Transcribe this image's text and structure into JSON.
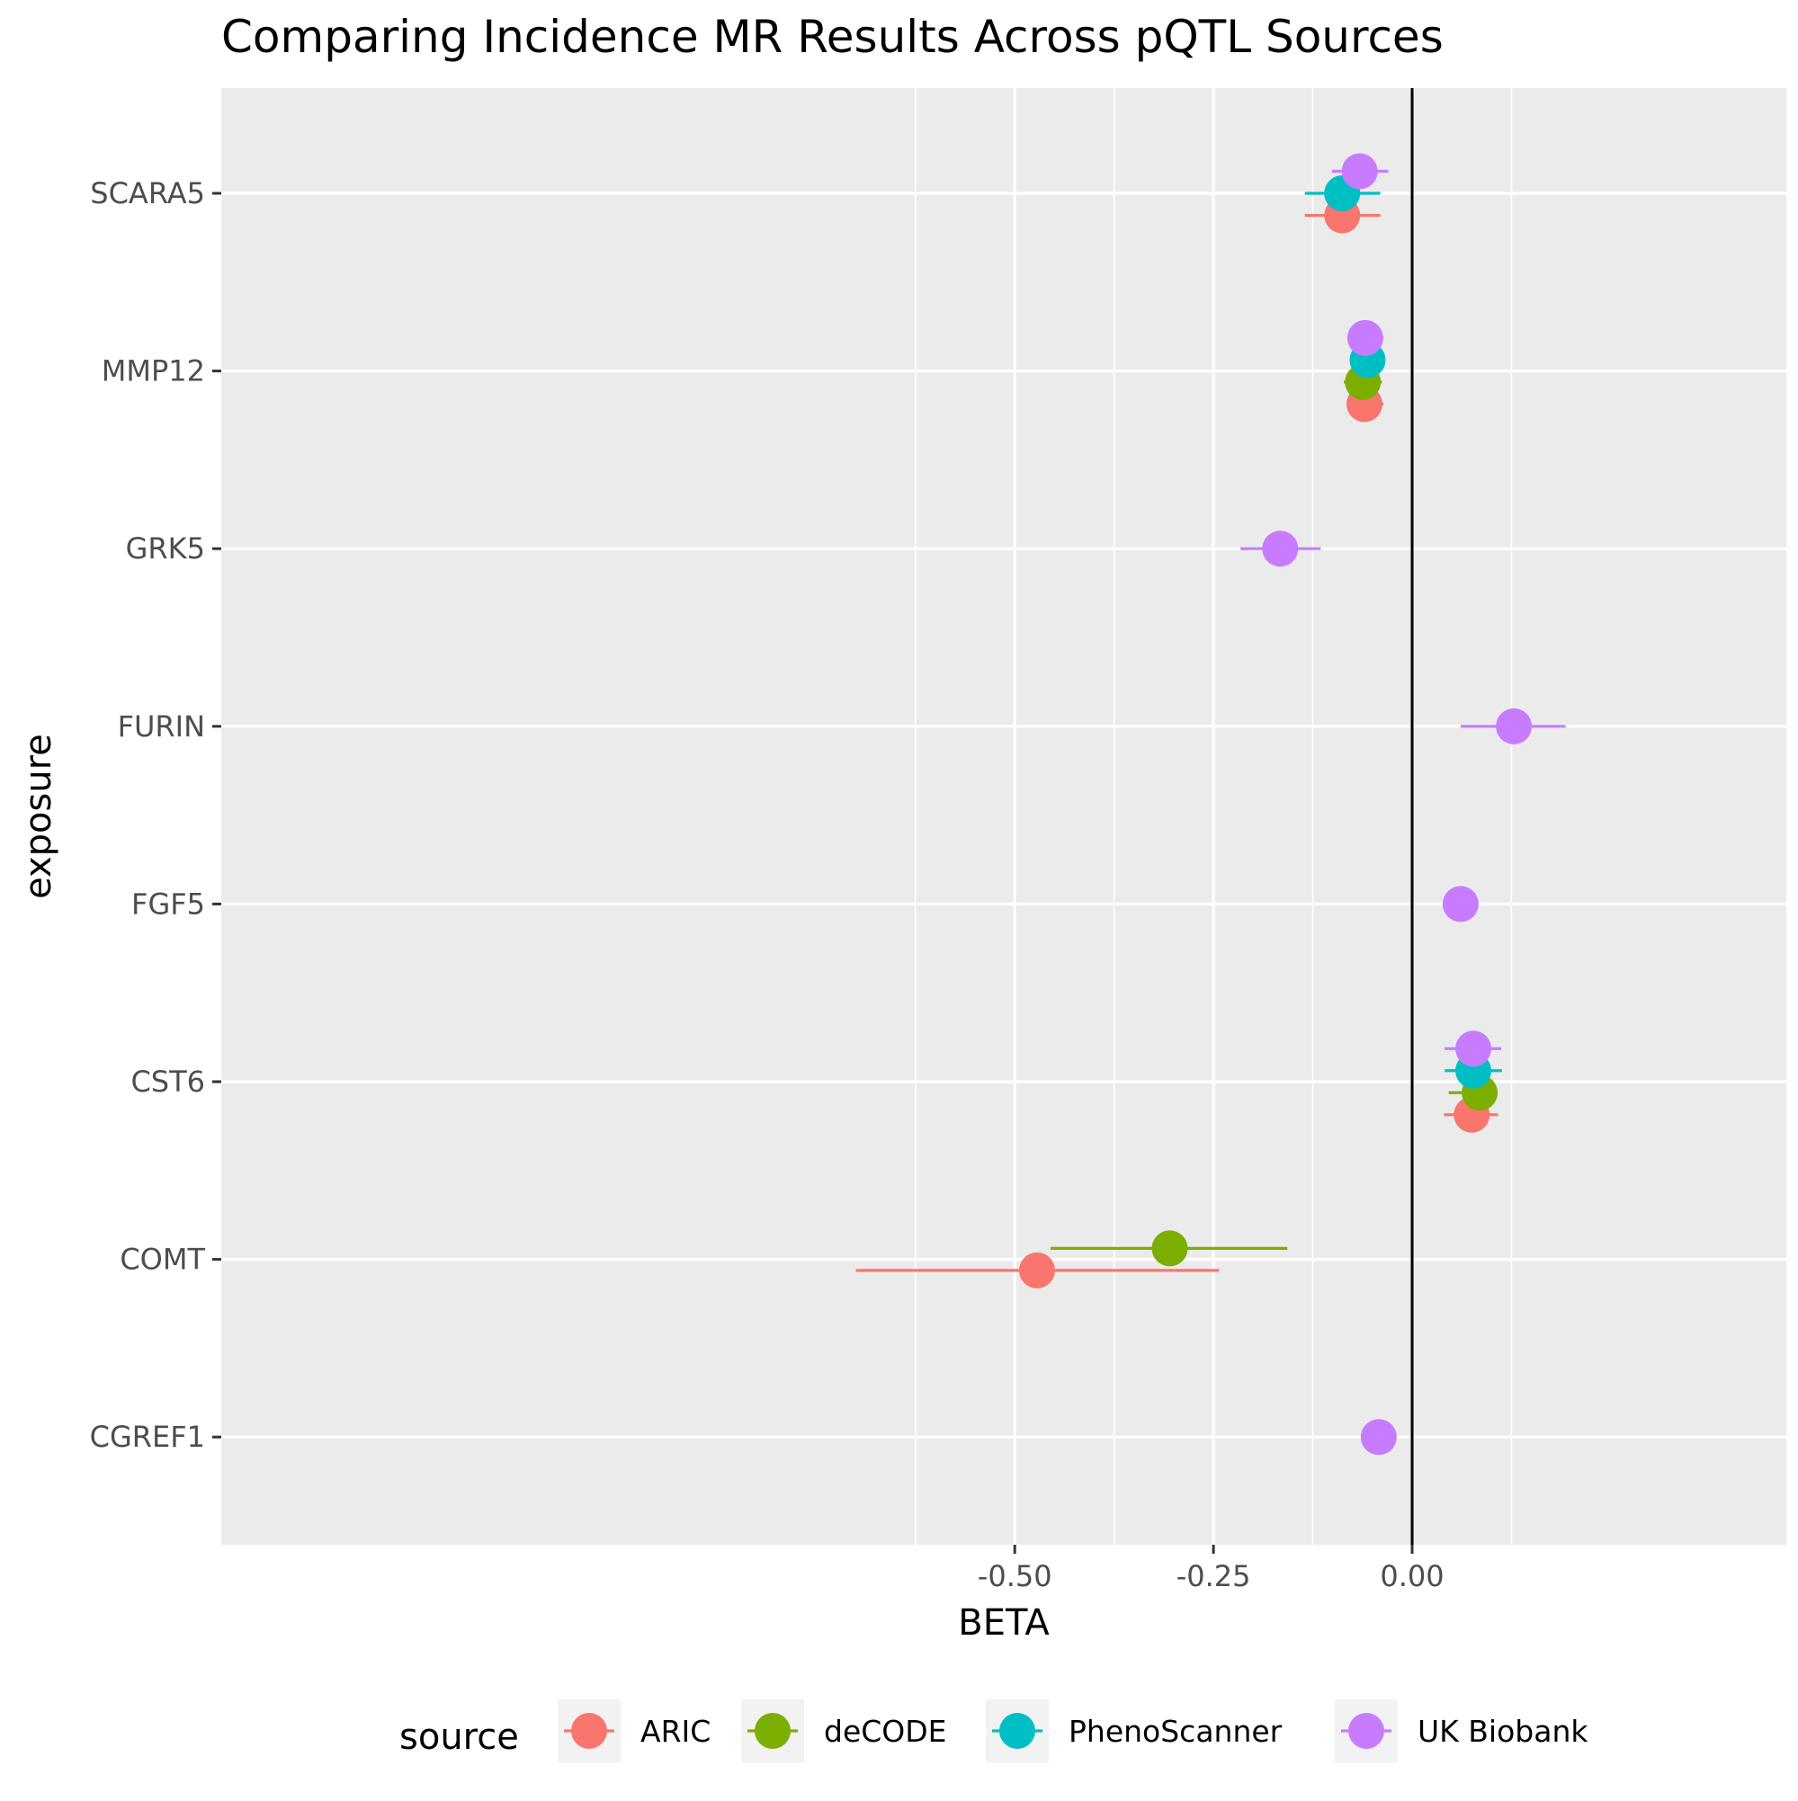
{
  "chart_data": {
    "type": "scatter",
    "title": "Comparing Incidence MR Results Across pQTL Sources",
    "xlabel": "BETA",
    "ylabel": "exposure",
    "xlim": [
      -0.75,
      0.24
    ],
    "xticks": [
      -0.5,
      -0.25,
      0.0
    ],
    "xtick_labels": [
      "-0.50",
      "-0.25",
      "0.00"
    ],
    "categories": [
      "SCARA5",
      "MMP12",
      "GRK5",
      "FURIN",
      "FGF5",
      "CST6",
      "COMT",
      "CGREF1"
    ],
    "reference_line_x": 0,
    "legend": {
      "title": "source",
      "position": "bottom"
    },
    "grid": true,
    "series": [
      {
        "name": "ARIC",
        "color": "#F8766D",
        "points": [
          {
            "exposure": "SCARA5",
            "beta": -0.088,
            "lo": -0.135,
            "hi": -0.04
          },
          {
            "exposure": "MMP12",
            "beta": -0.06,
            "lo": -0.08,
            "hi": -0.036
          },
          {
            "exposure": "CST6",
            "beta": 0.075,
            "lo": 0.04,
            "hi": 0.108
          },
          {
            "exposure": "COMT",
            "beta": -0.472,
            "lo": -0.7,
            "hi": -0.243
          }
        ]
      },
      {
        "name": "deCODE",
        "color": "#7CAE00",
        "points": [
          {
            "exposure": "MMP12",
            "beta": -0.062,
            "lo": -0.086,
            "hi": -0.038
          },
          {
            "exposure": "CST6",
            "beta": 0.085,
            "lo": 0.046,
            "hi": 0.104
          },
          {
            "exposure": "COMT",
            "beta": -0.305,
            "lo": -0.455,
            "hi": -0.157
          }
        ]
      },
      {
        "name": "PhenoScanner",
        "color": "#00BFC4",
        "points": [
          {
            "exposure": "SCARA5",
            "beta": -0.088,
            "lo": -0.135,
            "hi": -0.04
          },
          {
            "exposure": "MMP12",
            "beta": -0.056,
            "lo": -0.077,
            "hi": -0.034
          },
          {
            "exposure": "CST6",
            "beta": 0.077,
            "lo": 0.041,
            "hi": 0.113
          }
        ]
      },
      {
        "name": "UK Biobank",
        "color": "#C77CFF",
        "points": [
          {
            "exposure": "SCARA5",
            "beta": -0.066,
            "lo": -0.101,
            "hi": -0.03
          },
          {
            "exposure": "MMP12",
            "beta": -0.059,
            "lo": -0.08,
            "hi": -0.036
          },
          {
            "exposure": "GRK5",
            "beta": -0.166,
            "lo": -0.216,
            "hi": -0.115
          },
          {
            "exposure": "FURIN",
            "beta": 0.128,
            "lo": 0.061,
            "hi": 0.193
          },
          {
            "exposure": "FGF5",
            "beta": 0.061,
            "lo": 0.046,
            "hi": 0.078
          },
          {
            "exposure": "CST6",
            "beta": 0.077,
            "lo": 0.041,
            "hi": 0.112
          },
          {
            "exposure": "CGREF1",
            "beta": -0.042,
            "lo": -0.061,
            "hi": -0.022
          }
        ]
      }
    ]
  }
}
